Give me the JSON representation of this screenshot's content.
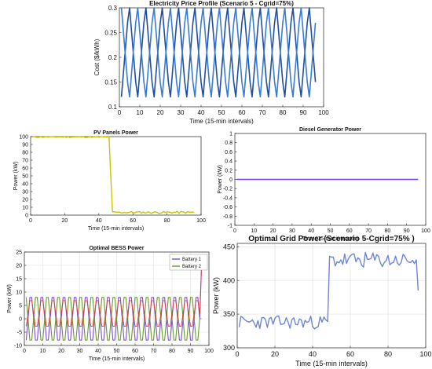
{
  "figure": {
    "colors": {
      "price_line": "#1f4fa3",
      "pv_line": "#c8c400",
      "diesel_line": "#7b3fe4",
      "battery1": "#7a4fd8",
      "battery2": "#6a9a2a",
      "bess_red": "#e23b3b",
      "grid_line": "#6f86d6",
      "axis": "#222222",
      "grid_bg": "#ffffff"
    }
  },
  "chart_data": [
    {
      "id": "price",
      "type": "line",
      "title": "Electricity Price Profile (Scenario 5 - Cgrid=75%)",
      "xlabel": "Time (15-min intervals)",
      "ylabel": "Cost ($/kWh)",
      "xlim": [
        0,
        100
      ],
      "ylim": [
        0.1,
        0.3
      ],
      "xticks": [
        0,
        10,
        20,
        30,
        40,
        50,
        60,
        70,
        80,
        90,
        100
      ],
      "yticks": [
        0.1,
        0.15,
        0.2,
        0.25,
        0.3
      ],
      "ytick_labels": [
        "0.1",
        "0.15",
        "0.2",
        "0.25",
        "0.3"
      ],
      "grid": false,
      "series": [
        {
          "pattern_period": 8,
          "pattern": [
            0.12,
            0.17,
            0.22,
            0.27,
            0.3,
            0.25,
            0.2,
            0.15
          ],
          "x_start": 1,
          "x_end": 96
        },
        {
          "pattern_period": 8,
          "pattern": [
            0.3,
            0.25,
            0.2,
            0.15,
            0.12,
            0.17,
            0.22,
            0.27
          ],
          "x_start": 1,
          "x_end": 96
        }
      ]
    },
    {
      "id": "pv",
      "type": "line",
      "title": "PV Panels Power",
      "xlabel": "Time (15-min intervals)",
      "ylabel": "Power (kW)",
      "xlim": [
        0,
        100
      ],
      "ylim": [
        0,
        100
      ],
      "xticks": [
        0,
        20,
        40,
        60,
        80,
        100
      ],
      "yticks": [
        0,
        10,
        20,
        30,
        40,
        50,
        60,
        70,
        80,
        90,
        100
      ],
      "grid": false,
      "series": [
        {
          "segments": [
            {
              "x": [
                1,
                46
              ],
              "y_mean": 99.5,
              "noise": 0.6
            },
            {
              "x": [
                46,
                48
              ],
              "y_mean": 50,
              "step_to": 4
            },
            {
              "x": [
                48,
                96
              ],
              "y_mean": 3.5,
              "noise": 1.2
            }
          ]
        }
      ]
    },
    {
      "id": "diesel",
      "type": "line",
      "title": "Diesel Generator Power",
      "xlabel": "Time (15-min intervals)",
      "ylabel": "Power (kW)",
      "xlim": [
        0,
        100
      ],
      "ylim": [
        -1,
        1
      ],
      "xticks": [
        0,
        10,
        20,
        30,
        40,
        50,
        60,
        70,
        80,
        90,
        100
      ],
      "yticks": [
        -1,
        -0.8,
        -0.6,
        -0.4,
        -0.2,
        0,
        0.2,
        0.4,
        0.6,
        0.8,
        1
      ],
      "grid": false,
      "series": [
        {
          "x": [
            1,
            96
          ],
          "y": [
            0,
            0
          ]
        }
      ]
    },
    {
      "id": "bess",
      "type": "line",
      "title": "Optimal BESS Power",
      "xlabel": "Time (15-min intervals)",
      "ylabel": "Power (kW)",
      "xlim": [
        0,
        100
      ],
      "ylim": [
        -10,
        25
      ],
      "xticks": [
        0,
        10,
        20,
        30,
        40,
        50,
        60,
        70,
        80,
        90,
        100
      ],
      "yticks": [
        -10,
        -5,
        0,
        5,
        10,
        15,
        20,
        25
      ],
      "grid": true,
      "legend": [
        "Battery 1",
        "Battery 2"
      ],
      "legend_position": "top-right",
      "series": [
        {
          "name": "Battery 1",
          "period": 6,
          "amplitude": 8,
          "end_value": 20
        },
        {
          "name": "Battery 2",
          "period": 6,
          "amplitude": 8,
          "phase": 3
        }
      ]
    },
    {
      "id": "grid",
      "type": "line",
      "title": "Optimal Grid Power (Scenario 5-Cgrid=75%  )",
      "xlabel": "Time (15-min intervals)",
      "ylabel": "Power (kW)",
      "xlim": [
        0,
        100
      ],
      "ylim": [
        300,
        455
      ],
      "xticks": [
        0,
        20,
        40,
        60,
        80,
        100
      ],
      "yticks": [
        300,
        350,
        400,
        450
      ],
      "grid": true,
      "series": [
        {
          "segments": [
            {
              "x": [
                1,
                48
              ],
              "y_mean": 338,
              "noise": 8
            },
            {
              "x": [
                49,
                95
              ],
              "y_mean": 430,
              "noise": 9
            },
            {
              "x": [
                96,
                96
              ],
              "y_mean": 385
            }
          ]
        }
      ]
    }
  ]
}
